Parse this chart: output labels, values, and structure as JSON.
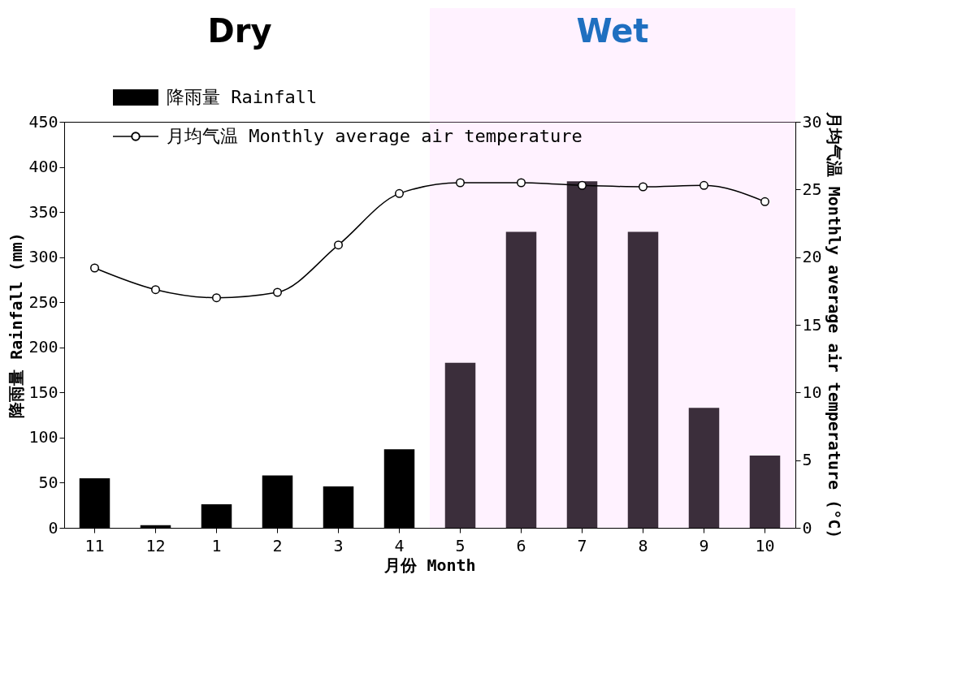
{
  "chart_data": {
    "type": "bar",
    "categories": [
      "11",
      "12",
      "1",
      "2",
      "3",
      "4",
      "5",
      "6",
      "7",
      "8",
      "9",
      "10"
    ],
    "series": [
      {
        "name": "降雨量 Rainfall",
        "color": "#000000",
        "values": [
          55,
          3,
          26,
          58,
          46,
          87,
          183,
          328,
          384,
          328,
          133,
          80
        ]
      },
      {
        "name": "月均气温 Monthly average air temperature",
        "type": "line",
        "axis": "y2",
        "color": "#000000",
        "marker": "circle",
        "values": [
          19.2,
          17.6,
          17.0,
          17.4,
          20.9,
          24.7,
          25.5,
          25.5,
          25.3,
          25.2,
          25.3,
          24.1
        ]
      }
    ],
    "xlabel": "月份 Month",
    "ylabel": "降雨量 Rainfall (mm)",
    "y2label": "月均气温 Monthly average air temperature (°C)",
    "ylim": [
      0,
      450
    ],
    "yticks": [
      0,
      50,
      100,
      150,
      200,
      250,
      300,
      350,
      400,
      450
    ],
    "y2lim": [
      0,
      30
    ],
    "y2ticks": [
      0,
      5,
      10,
      15,
      20,
      25,
      30
    ],
    "bands": [
      {
        "axis": "x",
        "from": "5",
        "to": "10",
        "label": "Wet",
        "color": "#ffc8ff"
      }
    ],
    "annotations": [
      "Dry"
    ],
    "legend": "top left",
    "grid": false
  }
}
